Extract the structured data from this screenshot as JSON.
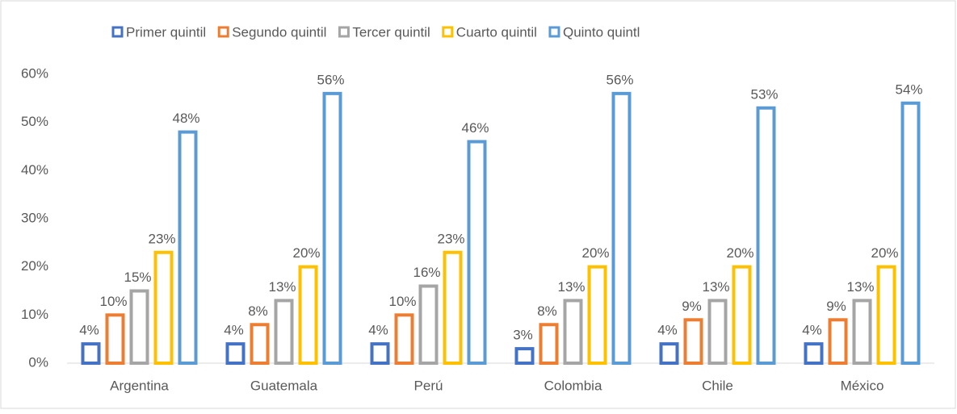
{
  "chart_data": {
    "type": "bar",
    "categories": [
      "Argentina",
      "Guatemala",
      "Perú",
      "Colombia",
      "Chile",
      "México"
    ],
    "series": [
      {
        "name": "Primer quintil",
        "color": "#4472c4",
        "values": [
          4,
          4,
          4,
          3,
          4,
          4
        ],
        "value_labels": [
          "4%",
          "4%",
          "4%",
          "3%",
          "4%",
          "4%"
        ]
      },
      {
        "name": "Segundo quintil",
        "color": "#ed7d31",
        "values": [
          10,
          8,
          10,
          8,
          9,
          9
        ],
        "value_labels": [
          "10%",
          "8%",
          "10%",
          "8%",
          "9%",
          "9%"
        ]
      },
      {
        "name": "Tercer quintil",
        "color": "#a5a5a5",
        "values": [
          15,
          13,
          16,
          13,
          13,
          13
        ],
        "value_labels": [
          "15%",
          "13%",
          "16%",
          "13%",
          "13%",
          "13%"
        ]
      },
      {
        "name": "Cuarto quintil",
        "color": "#ffc000",
        "values": [
          23,
          20,
          23,
          20,
          20,
          20
        ],
        "value_labels": [
          "23%",
          "20%",
          "23%",
          "20%",
          "20%",
          "20%"
        ]
      },
      {
        "name": "Quinto quintl",
        "color": "#5b9bd5",
        "values": [
          48,
          56,
          46,
          56,
          53,
          54
        ],
        "value_labels": [
          "48%",
          "56%",
          "46%",
          "56%",
          "53%",
          "54%"
        ]
      }
    ],
    "ylim": [
      0,
      60
    ],
    "yticks": [
      {
        "value": 0,
        "label": "0%"
      },
      {
        "value": 10,
        "label": "10%"
      },
      {
        "value": 20,
        "label": "20%"
      },
      {
        "value": 30,
        "label": "30%"
      },
      {
        "value": 40,
        "label": "40%"
      },
      {
        "value": 50,
        "label": "50%"
      },
      {
        "value": 60,
        "label": "60%"
      }
    ],
    "grid": false,
    "legend": "top"
  }
}
